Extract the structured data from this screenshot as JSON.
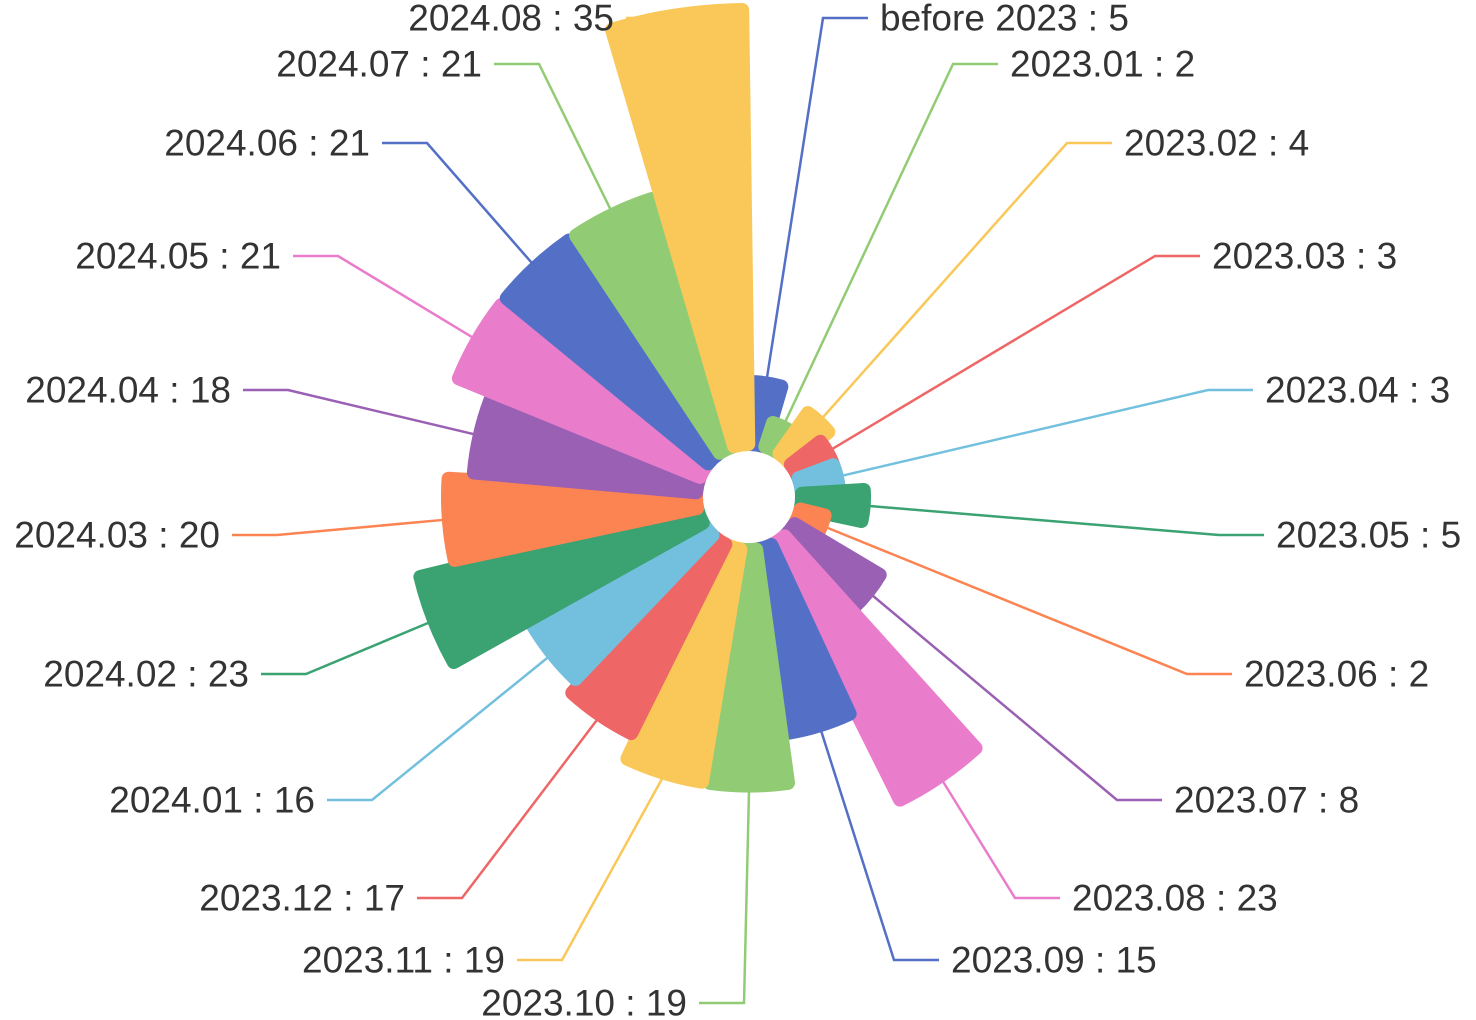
{
  "chart_data": {
    "type": "rose",
    "label_separator": " : ",
    "colors": [
      "#5470c6",
      "#91cc75",
      "#fac858",
      "#ee6666",
      "#73c0de",
      "#3ba272",
      "#fc8452",
      "#9a60b4",
      "#ea7ccc"
    ],
    "categories": [
      "before 2023",
      "2023.01",
      "2023.02",
      "2023.03",
      "2023.04",
      "2023.05",
      "2023.06",
      "2023.07",
      "2023.08",
      "2023.09",
      "2023.10",
      "2023.11",
      "2023.12",
      "2024.01",
      "2024.02",
      "2024.03",
      "2024.04",
      "2024.05",
      "2024.06",
      "2024.07",
      "2024.08"
    ],
    "values": [
      5,
      2,
      4,
      3,
      3,
      5,
      2,
      8,
      23,
      15,
      19,
      19,
      17,
      16,
      23,
      20,
      18,
      21,
      21,
      21,
      35
    ]
  }
}
